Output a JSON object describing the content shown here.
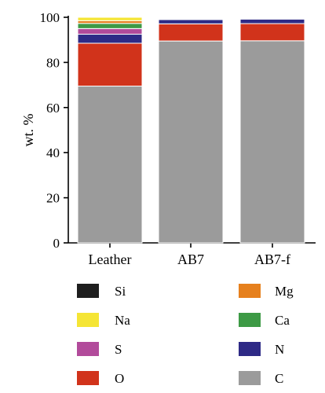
{
  "chart_data": {
    "type": "bar",
    "stacked": true,
    "title": "",
    "xlabel": "",
    "ylabel": "wt. %",
    "ylim": [
      0,
      100
    ],
    "yticks": [
      0,
      20,
      40,
      60,
      80,
      100
    ],
    "categories": [
      "Leather",
      "AB7",
      "AB7-f"
    ],
    "series": [
      {
        "name": "C",
        "color": "#9b9b9b",
        "values": [
          69.5,
          89.5,
          89.6
        ]
      },
      {
        "name": "O",
        "color": "#d1331b",
        "values": [
          19.0,
          7.6,
          7.6
        ]
      },
      {
        "name": "N",
        "color": "#2e2a86",
        "values": [
          4.0,
          1.9,
          2.0
        ]
      },
      {
        "name": "S",
        "color": "#b24b9b",
        "values": [
          2.5,
          0.0,
          0.0
        ]
      },
      {
        "name": "Ca",
        "color": "#3d9a45",
        "values": [
          2.3,
          0.0,
          0.0
        ]
      },
      {
        "name": "Mg",
        "color": "#e6801d",
        "values": [
          1.2,
          0.3,
          0.3
        ]
      },
      {
        "name": "Na",
        "color": "#f5e535",
        "values": [
          1.5,
          0.0,
          0.0
        ]
      },
      {
        "name": "Si",
        "color": "#1e1e1e",
        "values": [
          0.2,
          0.2,
          0.2
        ]
      }
    ],
    "legend": {
      "placement": "bottom",
      "left": [
        "Si",
        "Na",
        "S",
        "O"
      ],
      "right": [
        "Mg",
        "Ca",
        "N",
        "C"
      ]
    },
    "grid": false
  }
}
